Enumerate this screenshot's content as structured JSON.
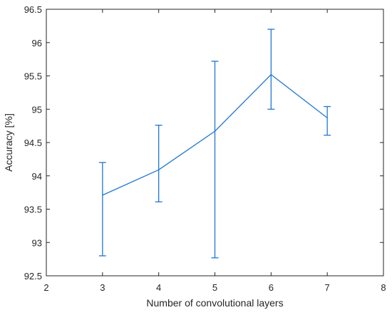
{
  "chart_data": {
    "type": "line",
    "xlabel": "Number of convolutional layers",
    "ylabel": "Accuracy [%]",
    "xlim": [
      2,
      8
    ],
    "ylim": [
      92.5,
      96.5
    ],
    "x_ticks": [
      "2",
      "3",
      "4",
      "5",
      "6",
      "7",
      "8"
    ],
    "y_ticks": [
      "92.5",
      "93",
      "93.5",
      "94",
      "94.5",
      "95",
      "95.5",
      "96",
      "96.5"
    ],
    "grid": false,
    "line_color": "#1f77d4",
    "axis_color": "#262626",
    "series": [
      {
        "x": [
          3,
          4,
          5,
          6,
          7
        ],
        "y": [
          93.71,
          94.09,
          94.67,
          95.52,
          94.87
        ],
        "err_low": [
          92.8,
          93.61,
          92.77,
          95.0,
          94.61
        ],
        "err_high": [
          94.2,
          94.76,
          95.72,
          96.2,
          95.04
        ]
      }
    ]
  }
}
